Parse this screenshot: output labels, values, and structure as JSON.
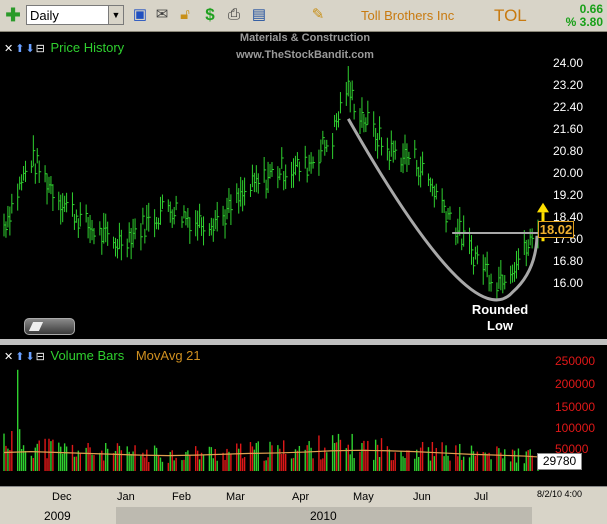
{
  "toolbar": {
    "plus_icon": "plus-icon",
    "period": "Daily",
    "icons": [
      "save-icon",
      "mail-icon",
      "lock-icon",
      "dollar-icon",
      "print-icon",
      "card-icon",
      "pencil-icon"
    ],
    "company": "Toll Brothers Inc",
    "ticker": "TOL",
    "change": "0.66",
    "change_pct": "% 3.80"
  },
  "watermark": {
    "line1": "Materials & Construction",
    "line2": "www.TheStockBandit.com"
  },
  "price_panel": {
    "title": "Price History"
  },
  "volume_panel": {
    "title": "Volume Bars",
    "ma_label": "MovAvg 21"
  },
  "annotation": {
    "line1": "Rounded",
    "line2": "Low"
  },
  "colors": {
    "bars": "#2fd02f",
    "volume_up": "#2fd02f",
    "volume_down": "#e01818",
    "curve": "#a8a8a8",
    "arrow": "#ffe000",
    "price_tag": "#f0b030"
  },
  "chart_data": [
    {
      "type": "bar",
      "title": "Price History",
      "ylim": [
        15.5,
        24.3
      ],
      "y_ticks": [
        "24.00",
        "23.20",
        "22.40",
        "21.60",
        "20.80",
        "20.00",
        "19.20",
        "18.40",
        "17.60",
        "16.80",
        "16.00"
      ],
      "last_price": "18.02",
      "x_start": "2009-11-02",
      "x_end": "2010-08-02",
      "x": [
        "2009-11-02",
        "2009-11-16",
        "2009-11-30",
        "2009-12-14",
        "2009-12-28",
        "2010-01-11",
        "2010-01-25",
        "2010-02-08",
        "2010-02-22",
        "2010-03-08",
        "2010-03-22",
        "2010-04-05",
        "2010-04-19",
        "2010-04-26",
        "2010-05-03",
        "2010-05-17",
        "2010-05-31",
        "2010-06-14",
        "2010-06-28",
        "2010-07-12",
        "2010-07-26",
        "2010-08-02"
      ],
      "close": [
        18.3,
        20.7,
        19.3,
        18.3,
        17.6,
        18.2,
        19.0,
        18.4,
        18.6,
        19.6,
        20.3,
        20.4,
        21.5,
        23.3,
        22.4,
        21.0,
        20.7,
        19.1,
        17.4,
        16.3,
        17.3,
        18.0
      ],
      "series": [
        {
          "name": "Price History",
          "values": [
            18.3,
            20.7,
            19.3,
            18.3,
            17.6,
            18.2,
            19.0,
            18.4,
            18.6,
            19.6,
            20.3,
            20.4,
            21.5,
            23.3,
            22.4,
            21.0,
            20.7,
            19.1,
            17.4,
            16.3,
            17.3,
            18.0
          ]
        }
      ]
    },
    {
      "type": "bar",
      "title": "Volume Bars",
      "ylim": [
        0,
        290000
      ],
      "y_ticks": [
        "250000",
        "200000",
        "150000",
        "100000",
        "50000"
      ],
      "last_volume": "29780",
      "ma_period": 21,
      "x": [
        "2009-11-02",
        "2009-11-16",
        "2009-11-30",
        "2009-12-14",
        "2009-12-28",
        "2010-01-11",
        "2010-01-25",
        "2010-02-08",
        "2010-02-22",
        "2010-03-08",
        "2010-03-22",
        "2010-04-05",
        "2010-04-19",
        "2010-05-03",
        "2010-05-17",
        "2010-05-31",
        "2010-06-14",
        "2010-06-28",
        "2010-07-12",
        "2010-07-26",
        "2010-08-02"
      ],
      "values": [
        70000,
        55000,
        48000,
        42000,
        40000,
        38000,
        36000,
        38000,
        40000,
        42000,
        45000,
        48000,
        55000,
        52000,
        48000,
        45000,
        42000,
        38000,
        36000,
        34000,
        29780
      ],
      "series": [
        {
          "name": "Volume Bars",
          "values": [
            70000,
            55000,
            48000,
            42000,
            40000,
            38000,
            36000,
            38000,
            40000,
            42000,
            45000,
            48000,
            55000,
            52000,
            48000,
            45000,
            42000,
            38000,
            36000,
            34000,
            29780
          ]
        },
        {
          "name": "MovAvg 21",
          "values": [
            42000,
            44000,
            42000,
            40000,
            38000,
            36000,
            35000,
            36000,
            38000,
            40000,
            41000,
            43000,
            46000,
            47000,
            46000,
            44000,
            41000,
            38000,
            36000,
            34000,
            32000
          ]
        }
      ]
    }
  ],
  "xaxis": {
    "months": [
      "Dec",
      "Jan",
      "Feb",
      "Mar",
      "Apr",
      "May",
      "Jun",
      "Jul"
    ],
    "years": [
      "2009",
      "2010"
    ],
    "datestamp": "8/2/10 4:00"
  }
}
